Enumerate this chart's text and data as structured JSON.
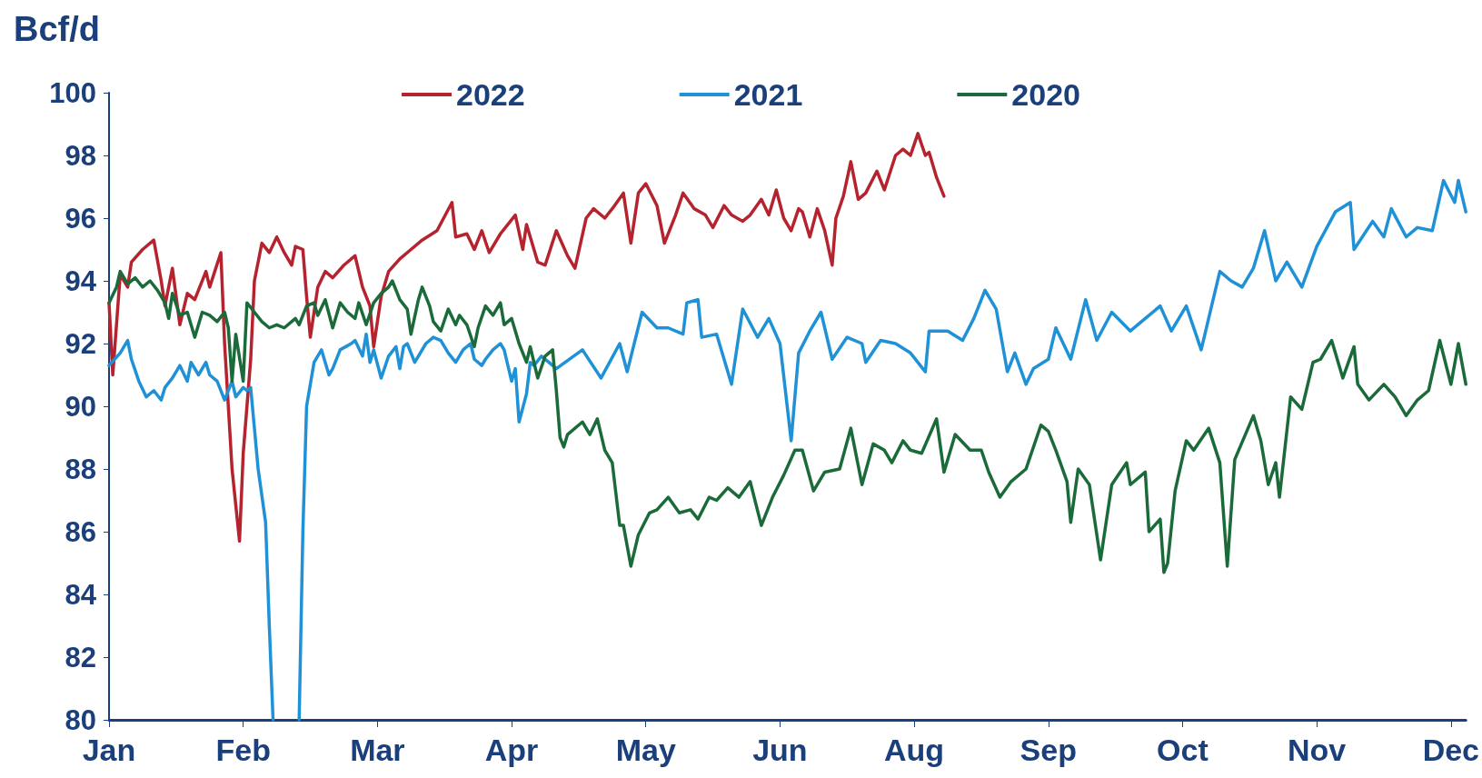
{
  "chart_data": {
    "type": "line",
    "ylabel": "Bcf/d",
    "xlim": [
      "--01-01",
      "--12-31"
    ],
    "ylim": [
      80,
      100
    ],
    "xticks": [
      {
        "value": "--01-01",
        "label": "Jan"
      },
      {
        "value": "--02-06",
        "label": "Feb"
      },
      {
        "value": "--03-14",
        "label": "Mar"
      },
      {
        "value": "--04-19",
        "label": "Apr"
      },
      {
        "value": "--05-25",
        "label": "May"
      },
      {
        "value": "--06-30",
        "label": "Jun"
      },
      {
        "value": "--08-05",
        "label": "Aug"
      },
      {
        "value": "--09-10",
        "label": "Sep"
      },
      {
        "value": "--10-16",
        "label": "Oct"
      },
      {
        "value": "--11-21",
        "label": "Nov"
      },
      {
        "value": "--12-27",
        "label": "Dec"
      }
    ],
    "yticks": [
      80,
      82,
      84,
      86,
      88,
      90,
      92,
      94,
      96,
      98,
      100
    ],
    "grid": false,
    "legend": "top",
    "marker": "none",
    "line_style": "solid",
    "series": [
      {
        "name": "2022",
        "color": "#b5232f",
        "x": [
          "--01-01",
          "--01-02",
          "--01-04",
          "--01-06",
          "--01-07",
          "--01-10",
          "--01-13",
          "--01-15",
          "--01-16",
          "--01-18",
          "--01-20",
          "--01-22",
          "--01-24",
          "--01-27",
          "--01-28",
          "--01-31",
          "--02-01",
          "--02-03",
          "--02-05",
          "--02-06",
          "--02-08",
          "--02-09",
          "--02-11",
          "--02-13",
          "--02-15",
          "--02-17",
          "--02-19",
          "--02-20",
          "--02-22",
          "--02-23",
          "--02-24",
          "--02-26",
          "--02-28",
          "--03-02",
          "--03-05",
          "--03-08",
          "--03-10",
          "--03-12",
          "--03-13",
          "--03-15",
          "--03-17",
          "--03-20",
          "--03-23",
          "--03-26",
          "--03-30",
          "--04-03",
          "--04-04",
          "--04-07",
          "--04-09",
          "--04-11",
          "--04-13",
          "--04-16",
          "--04-20",
          "--04-22",
          "--04-23",
          "--04-26",
          "--04-28",
          "--05-01",
          "--05-04",
          "--05-06",
          "--05-09",
          "--05-11",
          "--05-14",
          "--05-16",
          "--05-19",
          "--05-21",
          "--05-23",
          "--05-25",
          "--05-28",
          "--05-30",
          "--06-02",
          "--06-04",
          "--06-07",
          "--06-10",
          "--06-12",
          "--06-15",
          "--06-17",
          "--06-20",
          "--06-22",
          "--06-25",
          "--06-27",
          "--06-29",
          "--07-01",
          "--07-03",
          "--07-05",
          "--07-06",
          "--07-08",
          "--07-10",
          "--07-12",
          "--07-14",
          "--07-15",
          "--07-17",
          "--07-19",
          "--07-21",
          "--07-23",
          "--07-26",
          "--07-28",
          "--07-31",
          "--08-02",
          "--08-04",
          "--08-06",
          "--08-08",
          "--08-09",
          "--08-11",
          "--08-13"
        ],
        "values": [
          93.3,
          91.0,
          94.2,
          93.8,
          94.6,
          95.0,
          95.3,
          94.0,
          93.2,
          94.4,
          92.6,
          93.6,
          93.4,
          94.3,
          93.8,
          94.9,
          92.0,
          88.0,
          85.7,
          88.5,
          91.5,
          94.0,
          95.2,
          94.9,
          95.4,
          94.9,
          94.5,
          95.1,
          95.0,
          93.5,
          92.2,
          93.8,
          94.3,
          94.1,
          94.5,
          94.8,
          93.8,
          93.2,
          91.9,
          93.5,
          94.3,
          94.7,
          95.0,
          95.3,
          95.6,
          96.5,
          95.4,
          95.5,
          95.0,
          95.6,
          94.9,
          95.5,
          96.1,
          95.0,
          95.8,
          94.6,
          94.5,
          95.6,
          94.8,
          94.4,
          96.0,
          96.3,
          96.0,
          96.3,
          96.8,
          95.2,
          96.8,
          97.1,
          96.4,
          95.2,
          96.1,
          96.8,
          96.3,
          96.1,
          95.7,
          96.4,
          96.1,
          95.9,
          96.1,
          96.6,
          96.1,
          96.9,
          96.0,
          95.6,
          96.3,
          96.2,
          95.4,
          96.3,
          95.6,
          94.5,
          96.0,
          96.7,
          97.8,
          96.6,
          96.8,
          97.5,
          96.9,
          98.0,
          98.2,
          98.0,
          98.7,
          98.0,
          98.1,
          97.3,
          96.7
        ]
      },
      {
        "name": "2021",
        "color": "#1f91d6",
        "x": [
          "--01-01",
          "--01-04",
          "--01-06",
          "--01-07",
          "--01-09",
          "--01-11",
          "--01-13",
          "--01-15",
          "--01-16",
          "--01-18",
          "--01-20",
          "--01-22",
          "--01-23",
          "--01-25",
          "--01-27",
          "--01-28",
          "--01-30",
          "--02-01",
          "--02-03",
          "--02-04",
          "--02-06",
          "--02-07",
          "--02-08",
          "--02-10",
          "--02-12",
          "--02-13",
          "--02-14",
          "--02-17",
          "--02-21",
          "--02-22",
          "--02-23",
          "--02-25",
          "--02-27",
          "--03-01",
          "--03-02",
          "--03-04",
          "--03-07",
          "--03-08",
          "--03-10",
          "--03-11",
          "--03-12",
          "--03-13",
          "--03-15",
          "--03-17",
          "--03-19",
          "--03-20",
          "--03-21",
          "--03-22",
          "--03-24",
          "--03-25",
          "--03-27",
          "--03-29",
          "--03-31",
          "--04-02",
          "--04-04",
          "--04-06",
          "--04-08",
          "--04-09",
          "--04-11",
          "--04-12",
          "--04-14",
          "--04-16",
          "--04-17",
          "--04-19",
          "--04-20",
          "--04-21",
          "--04-23",
          "--04-24",
          "--04-25",
          "--04-27",
          "--04-29",
          "--05-01",
          "--05-08",
          "--05-13",
          "--05-18",
          "--05-20",
          "--05-24",
          "--05-28",
          "--05-31",
          "--06-04",
          "--06-05",
          "--06-08",
          "--06-09",
          "--06-13",
          "--06-17",
          "--06-20",
          "--06-24",
          "--06-27",
          "--06-30",
          "--07-03",
          "--07-05",
          "--07-08",
          "--07-11",
          "--07-14",
          "--07-18",
          "--07-22",
          "--07-23",
          "--07-27",
          "--07-31",
          "--08-04",
          "--08-08",
          "--08-09",
          "--08-14",
          "--08-18",
          "--08-21",
          "--08-24",
          "--08-27",
          "--08-30",
          "--09-01",
          "--09-04",
          "--09-06",
          "--09-10",
          "--09-12",
          "--09-16",
          "--09-20",
          "--09-23",
          "--09-27",
          "--10-02",
          "--10-06",
          "--10-10",
          "--10-13",
          "--10-17",
          "--10-21",
          "--10-26",
          "--10-29",
          "--11-01",
          "--11-04",
          "--11-07",
          "--11-10",
          "--11-13",
          "--11-17",
          "--11-21",
          "--11-26",
          "--11-30",
          "--12-01",
          "--12-06",
          "--12-09",
          "--12-11",
          "--12-15",
          "--12-18",
          "--12-22",
          "--12-25",
          "--12-28",
          "--12-29",
          "--12-31"
        ],
        "values": [
          91.3,
          91.7,
          92.1,
          91.5,
          90.8,
          90.3,
          90.5,
          90.2,
          90.6,
          90.9,
          91.3,
          90.8,
          91.4,
          91.0,
          91.4,
          91.0,
          90.8,
          90.2,
          90.8,
          90.3,
          90.6,
          90.5,
          90.6,
          88.0,
          86.3,
          83.0,
          80.0,
          null,
          80.0,
          86.0,
          90.0,
          91.4,
          91.8,
          91.0,
          91.2,
          91.8,
          92.0,
          92.1,
          91.6,
          92.3,
          91.4,
          91.8,
          90.9,
          91.6,
          91.9,
          91.2,
          91.9,
          92.0,
          91.4,
          91.6,
          92.0,
          92.2,
          92.1,
          91.7,
          91.4,
          91.8,
          92.0,
          91.5,
          91.3,
          91.5,
          91.8,
          92.0,
          91.8,
          90.8,
          91.2,
          89.5,
          90.4,
          91.4,
          91.3,
          91.6,
          91.4,
          91.2,
          91.8,
          90.9,
          92.0,
          91.1,
          93.0,
          92.5,
          92.5,
          92.3,
          93.3,
          93.4,
          92.2,
          92.3,
          90.7,
          93.1,
          92.2,
          92.8,
          92.0,
          88.9,
          91.7,
          92.4,
          93.0,
          91.5,
          92.2,
          92.0,
          91.4,
          92.1,
          92.0,
          91.7,
          91.1,
          92.4,
          92.4,
          92.1,
          92.8,
          93.7,
          93.1,
          91.1,
          91.7,
          90.7,
          91.2,
          91.5,
          92.5,
          91.5,
          93.4,
          92.1,
          93.0,
          92.4,
          92.8,
          93.2,
          92.4,
          93.2,
          91.8,
          94.3,
          94.0,
          93.8,
          94.4,
          95.6,
          94.0,
          94.6,
          93.8,
          95.1,
          96.2,
          96.5,
          95.0,
          95.9,
          95.4,
          96.3,
          95.4,
          95.7,
          95.6,
          97.2,
          96.5,
          97.2,
          96.2
        ]
      },
      {
        "name": "2020",
        "color": "#1b6b3a",
        "x": [
          "--01-01",
          "--01-03",
          "--01-04",
          "--01-06",
          "--01-08",
          "--01-10",
          "--01-12",
          "--01-14",
          "--01-16",
          "--01-17",
          "--01-18",
          "--01-20",
          "--01-22",
          "--01-24",
          "--01-26",
          "--01-28",
          "--01-30",
          "--02-01",
          "--02-02",
          "--02-03",
          "--02-04",
          "--02-06",
          "--02-07",
          "--02-09",
          "--02-11",
          "--02-13",
          "--02-15",
          "--02-17",
          "--02-20",
          "--02-21",
          "--02-23",
          "--02-25",
          "--02-26",
          "--02-28",
          "--03-02",
          "--03-04",
          "--03-06",
          "--03-08",
          "--03-09",
          "--03-11",
          "--03-13",
          "--03-15",
          "--03-17",
          "--03-18",
          "--03-20",
          "--03-22",
          "--03-23",
          "--03-25",
          "--03-26",
          "--03-28",
          "--03-29",
          "--03-31",
          "--04-02",
          "--04-04",
          "--04-05",
          "--04-07",
          "--04-09",
          "--04-10",
          "--04-12",
          "--04-14",
          "--04-16",
          "--04-17",
          "--04-19",
          "--04-21",
          "--04-23",
          "--04-24",
          "--04-26",
          "--04-28",
          "--04-30",
          "--05-01",
          "--05-02",
          "--05-03",
          "--05-04",
          "--05-08",
          "--05-10",
          "--05-12",
          "--05-14",
          "--05-16",
          "--05-18",
          "--05-19",
          "--05-21",
          "--05-23",
          "--05-26",
          "--05-28",
          "--05-31",
          "--06-03",
          "--06-06",
          "--06-08",
          "--06-11",
          "--06-13",
          "--06-16",
          "--06-19",
          "--06-22",
          "--06-25",
          "--06-28",
          "--07-01",
          "--07-04",
          "--07-06",
          "--07-09",
          "--07-12",
          "--07-16",
          "--07-19",
          "--07-22",
          "--07-25",
          "--07-28",
          "--07-30",
          "--08-02",
          "--08-04",
          "--08-07",
          "--08-11",
          "--08-13",
          "--08-16",
          "--08-20",
          "--08-23",
          "--08-25",
          "--08-28",
          "--08-31",
          "--09-04",
          "--09-08",
          "--09-10",
          "--09-12",
          "--09-15",
          "--09-16",
          "--09-18",
          "--09-21",
          "--09-24",
          "--09-27",
          "--10-01",
          "--10-02",
          "--10-06",
          "--10-07",
          "--10-10",
          "--10-11",
          "--10-12",
          "--10-14",
          "--10-17",
          "--10-19",
          "--10-23",
          "--10-26",
          "--10-28",
          "--10-30",
          "--11-04",
          "--11-06",
          "--11-08",
          "--11-10",
          "--11-11",
          "--11-14",
          "--11-17",
          "--11-20",
          "--11-22",
          "--11-25",
          "--11-28",
          "--12-01",
          "--12-02",
          "--12-05",
          "--12-09",
          "--12-12",
          "--12-15",
          "--12-18",
          "--12-21",
          "--12-24",
          "--12-27",
          "--12-29",
          "--12-31"
        ],
        "values": [
          93.3,
          93.8,
          94.3,
          93.9,
          94.1,
          93.8,
          94.0,
          93.7,
          93.3,
          92.8,
          93.6,
          92.9,
          93.0,
          92.2,
          93.0,
          92.9,
          92.7,
          93.0,
          92.5,
          90.8,
          92.3,
          90.8,
          93.3,
          93.0,
          92.7,
          92.5,
          92.6,
          92.5,
          92.8,
          92.6,
          93.2,
          93.3,
          92.9,
          93.4,
          92.5,
          93.3,
          93.0,
          92.8,
          93.3,
          92.6,
          93.3,
          93.6,
          93.8,
          94.0,
          93.4,
          93.1,
          92.3,
          93.4,
          93.8,
          93.2,
          92.7,
          92.4,
          93.1,
          92.6,
          92.9,
          92.6,
          91.9,
          92.5,
          93.2,
          92.9,
          93.3,
          92.6,
          92.8,
          92.0,
          91.4,
          91.9,
          90.9,
          91.6,
          91.8,
          90.5,
          89.0,
          88.7,
          89.1,
          89.5,
          89.1,
          89.6,
          88.6,
          88.2,
          86.2,
          86.2,
          84.9,
          85.9,
          86.6,
          86.7,
          87.1,
          86.6,
          86.7,
          86.4,
          87.1,
          87.0,
          87.4,
          87.1,
          87.6,
          86.2,
          87.1,
          87.8,
          88.6,
          88.6,
          87.3,
          87.9,
          88.0,
          89.3,
          87.5,
          88.8,
          88.6,
          88.2,
          88.9,
          88.6,
          88.5,
          89.6,
          87.9,
          89.1,
          88.6,
          88.6,
          87.9,
          87.1,
          87.6,
          88.0,
          89.4,
          89.2,
          88.6,
          87.6,
          86.3,
          88.0,
          87.5,
          85.1,
          87.5,
          88.2,
          87.5,
          87.9,
          86.0,
          86.4,
          84.7,
          85.0,
          87.3,
          88.9,
          88.6,
          89.3,
          88.2,
          84.9,
          88.3,
          89.7,
          88.9,
          87.5,
          88.2,
          87.1,
          90.3,
          89.9,
          91.4,
          91.5,
          92.1,
          90.9,
          91.9,
          90.7,
          90.2,
          90.7,
          90.3,
          89.7,
          90.2,
          90.5,
          92.1,
          90.7,
          92.0,
          90.7
        ]
      }
    ]
  }
}
